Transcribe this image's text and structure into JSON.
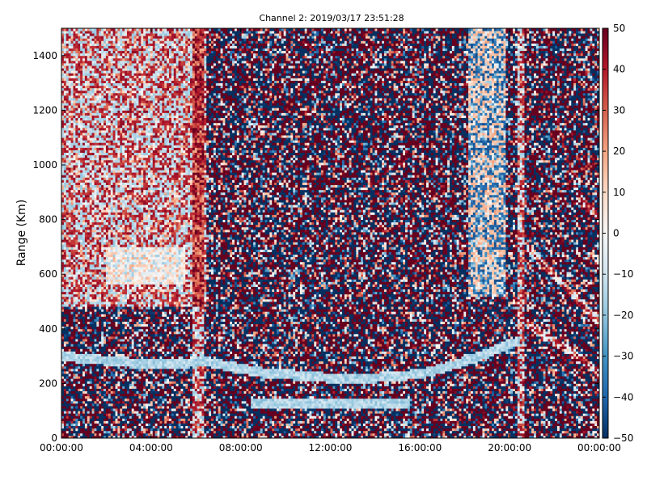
{
  "chart_data": {
    "type": "heatmap",
    "title": "Channel 2: 2019/03/17 23:51:28",
    "ylabel": "Range (Km)",
    "xlabel": "",
    "x_ticks": [
      "00:00:00",
      "04:00:00",
      "08:00:00",
      "12:00:00",
      "16:00:00",
      "20:00:00",
      "00:00:00"
    ],
    "xlim_hours": [
      0,
      24
    ],
    "y_ticks": [
      0,
      200,
      400,
      600,
      800,
      1000,
      1200,
      1400
    ],
    "ylim": [
      0,
      1500
    ],
    "colorbar": {
      "colormap": "RdBu_r",
      "vmin": -50,
      "vmax": 50,
      "ticks": [
        50,
        40,
        30,
        20,
        10,
        0,
        -10,
        -20,
        -30,
        -40,
        -50
      ],
      "colors": [
        "#053061",
        "#2166ac",
        "#4393c3",
        "#92c5de",
        "#d1e5f0",
        "#f7f7f7",
        "#fddbc7",
        "#f4a582",
        "#d6604d",
        "#b2182b",
        "#67001f"
      ]
    },
    "grid": false,
    "legend": "none",
    "features": [
      {
        "kind": "positive_band",
        "hour_start": 0.0,
        "hour_end": 6.5,
        "range_start": 480,
        "range_end": 1500
      },
      {
        "kind": "negative_band",
        "hour_start": 2.0,
        "hour_end": 5.5,
        "range_start": 560,
        "range_end": 700
      },
      {
        "kind": "positive_column",
        "hour_start": 5.8,
        "hour_end": 6.4,
        "range_start": 0,
        "range_end": 1500
      },
      {
        "kind": "negative_trace",
        "points": [
          [
            0.0,
            300
          ],
          [
            4.0,
            270
          ],
          [
            6.5,
            280
          ],
          [
            9.0,
            240
          ],
          [
            13.0,
            215
          ],
          [
            16.0,
            235
          ],
          [
            18.0,
            280
          ],
          [
            20.5,
            360
          ]
        ]
      },
      {
        "kind": "negative_trace",
        "points": [
          [
            8.5,
            130
          ],
          [
            15.5,
            130
          ]
        ]
      },
      {
        "kind": "negative_column",
        "hour_start": 18.2,
        "hour_end": 19.8,
        "range_start": 520,
        "range_end": 1500
      },
      {
        "kind": "positive_column",
        "hour_start": 20.3,
        "hour_end": 20.7,
        "range_start": 0,
        "range_end": 1500
      },
      {
        "kind": "positive_diagonal",
        "points": [
          [
            20.8,
            700
          ],
          [
            22.0,
            600
          ],
          [
            24.0,
            420
          ]
        ]
      },
      {
        "kind": "positive_diagonal",
        "points": [
          [
            22.0,
            1200
          ],
          [
            23.0,
            900
          ],
          [
            24.0,
            800
          ]
        ]
      },
      {
        "kind": "positive_diagonal",
        "points": [
          [
            20.8,
            420
          ],
          [
            22.5,
            330
          ],
          [
            24.0,
            240
          ]
        ]
      }
    ]
  }
}
